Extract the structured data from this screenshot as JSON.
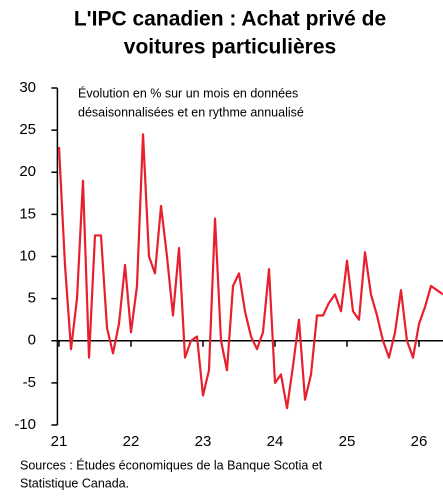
{
  "chart_data": {
    "type": "line",
    "title": [
      "L'IPC canadien : Achat privé de",
      "voitures particulières"
    ],
    "annotation": [
      "Évolution en % sur un mois en données",
      "désaisonnalisées et en rythme annualisé"
    ],
    "source": [
      "Sources : Études économiques de la Banque Scotia et",
      "Statistique Canada."
    ],
    "x": [
      21.0,
      21.083,
      21.167,
      21.25,
      21.333,
      21.417,
      21.5,
      21.583,
      21.667,
      21.75,
      21.833,
      21.917,
      22.0,
      22.083,
      22.167,
      22.25,
      22.333,
      22.417,
      22.5,
      22.583,
      22.667,
      22.75,
      22.833,
      22.917,
      23.0,
      23.083,
      23.167,
      23.25,
      23.333,
      23.417,
      23.5,
      23.583,
      23.667,
      23.75,
      23.833,
      23.917,
      24.0,
      24.083,
      24.167,
      24.25,
      24.333,
      24.417,
      24.5,
      24.583,
      24.667,
      24.75,
      24.833,
      24.917,
      25.0,
      25.083,
      25.167,
      25.25,
      25.333,
      25.417,
      25.5,
      25.583,
      25.667,
      25.75,
      25.833,
      25.917,
      26.0,
      26.083,
      26.167,
      26.25,
      26.333
    ],
    "series": [
      {
        "name": "IPC",
        "color": "#e8202e",
        "values": [
          23,
          9,
          -1,
          5,
          19,
          -2,
          12.5,
          12.5,
          1.5,
          -1.5,
          2,
          9,
          1,
          6.5,
          24.5,
          10,
          8,
          16,
          10,
          3,
          11,
          -2,
          0,
          0.5,
          -6.5,
          -3.5,
          14.5,
          0,
          -3.5,
          6.5,
          8,
          3.5,
          0.5,
          -1,
          1,
          8.5,
          -5,
          -4,
          -8,
          -3,
          2.5,
          -7,
          -4,
          3,
          3,
          4.5,
          5.5,
          3.5,
          9.5,
          3.5,
          2.5,
          10.5,
          5.5,
          3,
          0,
          -2,
          1,
          6,
          0,
          -2,
          2,
          4,
          6.5,
          6,
          5.5
        ]
      }
    ],
    "xlim": [
      20.95,
      26.35
    ],
    "xticks": [
      21,
      22,
      23,
      24,
      25,
      26
    ],
    "ylim": [
      -10,
      30
    ],
    "yticks": [
      -10,
      -5,
      0,
      5,
      10,
      15,
      20,
      25,
      30
    ]
  }
}
